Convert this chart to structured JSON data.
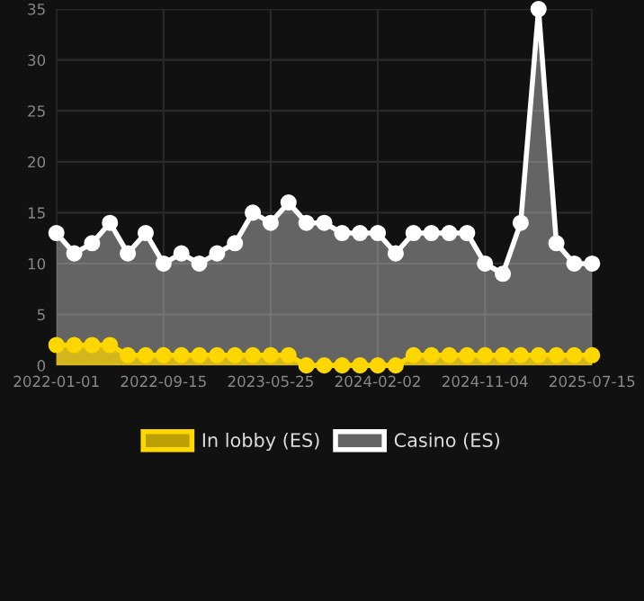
{
  "chart_data": {
    "type": "area",
    "categories": [
      "2022-01-01",
      null,
      null,
      null,
      null,
      null,
      "2022-09-15",
      null,
      null,
      null,
      null,
      null,
      "2023-05-25",
      null,
      null,
      null,
      null,
      null,
      "2024-02-02",
      null,
      null,
      null,
      null,
      null,
      "2024-11-04",
      null,
      null,
      null,
      null,
      null,
      "2025-07-15"
    ],
    "series": [
      {
        "name": "In lobby (ES)",
        "color": "#ffd700",
        "values": [
          2,
          2,
          2,
          2,
          1,
          1,
          1,
          1,
          1,
          1,
          1,
          1,
          1,
          1,
          0,
          0,
          0,
          0,
          0,
          0,
          1,
          1,
          1,
          1,
          1,
          1,
          1,
          1,
          1,
          1,
          1
        ]
      },
      {
        "name": "Casino (ES)",
        "color": "#ffffff",
        "values": [
          13,
          11,
          12,
          14,
          11,
          13,
          10,
          11,
          10,
          11,
          12,
          15,
          14,
          16,
          14,
          14,
          13,
          13,
          13,
          11,
          13,
          13,
          13,
          13,
          10,
          9,
          14,
          35,
          12,
          10,
          10
        ]
      }
    ],
    "ylim": [
      0,
      35
    ],
    "yticks": [
      0,
      5,
      10,
      15,
      20,
      25,
      30,
      35
    ],
    "grid": true,
    "legend": "bottom",
    "marker": "circle",
    "line_style": "solid"
  }
}
